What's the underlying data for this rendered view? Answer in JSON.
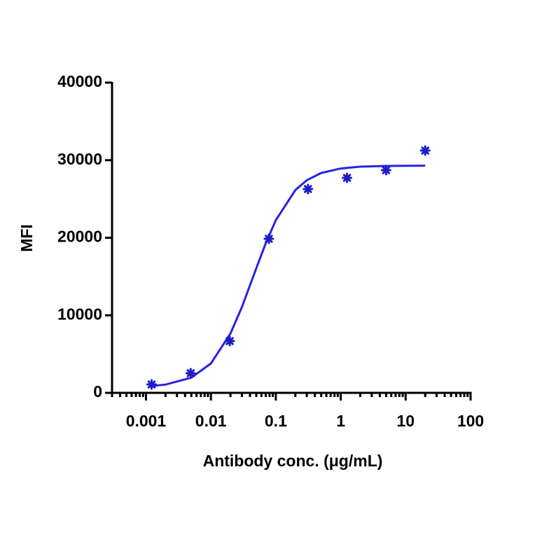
{
  "chart_data": {
    "type": "scatter",
    "xlabel": "Antibody conc. (μg/mL)",
    "ylabel": "MFI",
    "xscale": "log",
    "xlim": [
      0.0003,
      100
    ],
    "xticks": [
      0.001,
      0.01,
      0.1,
      1,
      10,
      100
    ],
    "ylim": [
      0,
      40000
    ],
    "yticks": [
      0,
      10000,
      20000,
      30000,
      40000
    ],
    "points": {
      "color": "#1c1cc8",
      "x": [
        0.00122,
        0.00488,
        0.0195,
        0.078,
        0.3125,
        1.25,
        5,
        20
      ],
      "values": [
        1080,
        2530,
        6680,
        19860,
        26280,
        27720,
        28710,
        31240
      ]
    },
    "fit": {
      "color": "#2424e0",
      "x": [
        0.0012,
        0.002,
        0.005,
        0.01,
        0.02,
        0.03,
        0.05,
        0.07,
        0.1,
        0.2,
        0.3,
        0.5,
        1,
        2,
        5,
        10,
        20
      ],
      "values": [
        880,
        1066,
        1960,
        3790,
        7650,
        11050,
        16060,
        19290,
        22260,
        26150,
        27420,
        28350,
        28930,
        29160,
        29260,
        29280,
        29290
      ]
    }
  }
}
